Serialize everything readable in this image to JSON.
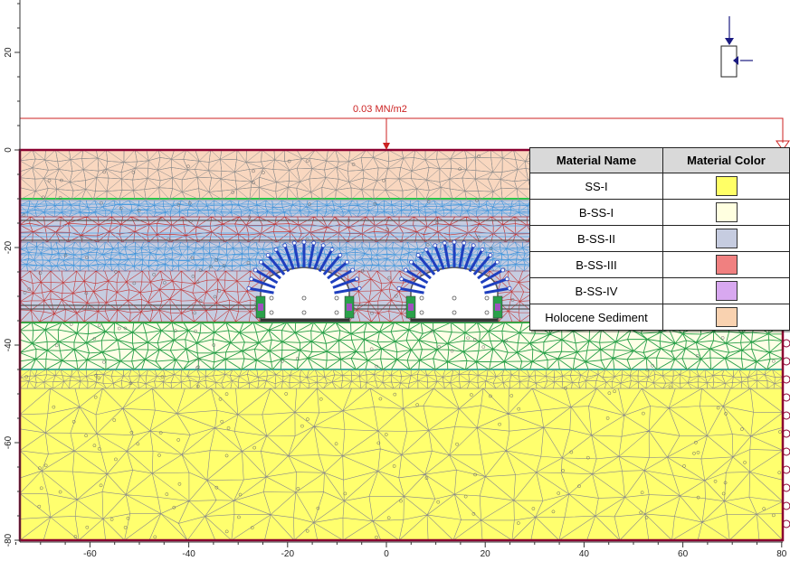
{
  "load_label": "0.03 MN/m2",
  "axes": {
    "x_ticks": [
      "-60",
      "-40",
      "-20",
      "0",
      "20",
      "40",
      "60",
      "80"
    ],
    "y_ticks": [
      "20",
      "0",
      "-20",
      "-40",
      "-60",
      "-80"
    ]
  },
  "legend": {
    "header_name": "Material Name",
    "header_color": "Material Color",
    "rows": [
      {
        "name": "SS-I",
        "color": "#ffff66"
      },
      {
        "name": "B-SS-I",
        "color": "#ffffe0"
      },
      {
        "name": "B-SS-II",
        "color": "#c6cce0"
      },
      {
        "name": "B-SS-III",
        "color": "#f08080"
      },
      {
        "name": "B-SS-IV",
        "color": "#d8a8f0"
      },
      {
        "name": "Holocene Sediment",
        "color": "#f9d2b0"
      }
    ]
  },
  "layer_colors": {
    "holocene": "#f9d7bf",
    "b_ss_i": "#ffffe6",
    "b_ss_ii": "#c6cce0",
    "b_ss_iii": "#c6cce0",
    "ss_i": "#ffff6e",
    "mesh": "#8c8c8c",
    "boundary": "#8b0030",
    "load": "#cc2222",
    "bolts": "#1f3fbf"
  }
}
